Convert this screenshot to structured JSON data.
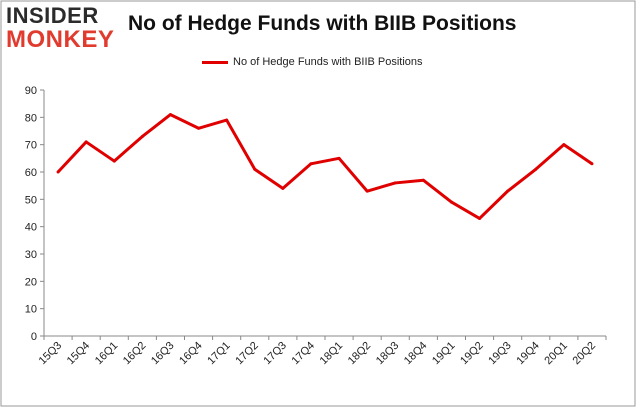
{
  "logo": {
    "line1": "INSIDER",
    "line2": "MONKEY"
  },
  "chart_data": {
    "type": "line",
    "title": "No of Hedge Funds with BIIB Positions",
    "categories": [
      "15Q3",
      "15Q4",
      "16Q1",
      "16Q2",
      "16Q3",
      "16Q4",
      "17Q1",
      "17Q2",
      "17Q3",
      "17Q4",
      "18Q1",
      "18Q2",
      "18Q3",
      "18Q4",
      "19Q1",
      "19Q2",
      "19Q3",
      "19Q4",
      "20Q1",
      "20Q2"
    ],
    "series": [
      {
        "name": "No of Hedge Funds with BIIB Positions",
        "values": [
          60,
          71,
          64,
          73,
          81,
          76,
          79,
          61,
          54,
          63,
          65,
          53,
          56,
          57,
          49,
          43,
          53,
          61,
          70,
          63
        ]
      }
    ],
    "ylim": [
      0,
      90
    ],
    "yticks": [
      0,
      10,
      20,
      30,
      40,
      50,
      60,
      70,
      80,
      90
    ],
    "grid": false,
    "legend_position": "top-center",
    "line_color": "#e00000"
  }
}
